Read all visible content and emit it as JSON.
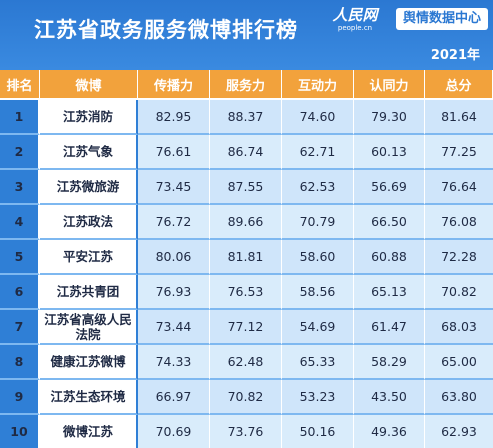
{
  "header": {
    "title": "江苏省政务服务微博排行榜",
    "brand": "人民网",
    "brand_domain": "people.cn",
    "badge": "舆情数据中心",
    "year": "2021年"
  },
  "table": {
    "columns": [
      "排名",
      "微博",
      "传播力",
      "服务力",
      "互动力",
      "认同力",
      "总分"
    ],
    "rows": [
      {
        "rank": "1",
        "name": "江苏消防",
        "cells": [
          "82.95",
          "88.37",
          "74.60",
          "79.30",
          "81.64"
        ]
      },
      {
        "rank": "2",
        "name": "江苏气象",
        "cells": [
          "76.61",
          "86.74",
          "62.71",
          "60.13",
          "77.25"
        ]
      },
      {
        "rank": "3",
        "name": "江苏微旅游",
        "cells": [
          "73.45",
          "87.55",
          "62.53",
          "56.69",
          "76.64"
        ]
      },
      {
        "rank": "4",
        "name": "江苏政法",
        "cells": [
          "76.72",
          "89.66",
          "70.79",
          "66.50",
          "76.08"
        ]
      },
      {
        "rank": "5",
        "name": "平安江苏",
        "cells": [
          "80.06",
          "81.81",
          "58.60",
          "60.88",
          "72.28"
        ]
      },
      {
        "rank": "6",
        "name": "江苏共青团",
        "cells": [
          "76.93",
          "76.53",
          "58.56",
          "65.13",
          "70.82"
        ]
      },
      {
        "rank": "7",
        "name": "江苏省高级人民法院",
        "cells": [
          "73.44",
          "77.12",
          "54.69",
          "61.47",
          "68.03"
        ]
      },
      {
        "rank": "8",
        "name": "健康江苏微博",
        "cells": [
          "74.33",
          "62.48",
          "65.33",
          "58.29",
          "65.00"
        ]
      },
      {
        "rank": "9",
        "name": "江苏生态环境",
        "cells": [
          "66.97",
          "70.82",
          "53.23",
          "43.50",
          "63.80"
        ]
      },
      {
        "rank": "10",
        "name": "微博江苏",
        "cells": [
          "70.69",
          "73.76",
          "50.16",
          "49.36",
          "62.93"
        ]
      }
    ]
  },
  "colors": {
    "background": "#2f7fd6",
    "header_row": "#f2a23c",
    "value_cells": "#d9ecfb",
    "name_cells": "#ffffff"
  }
}
